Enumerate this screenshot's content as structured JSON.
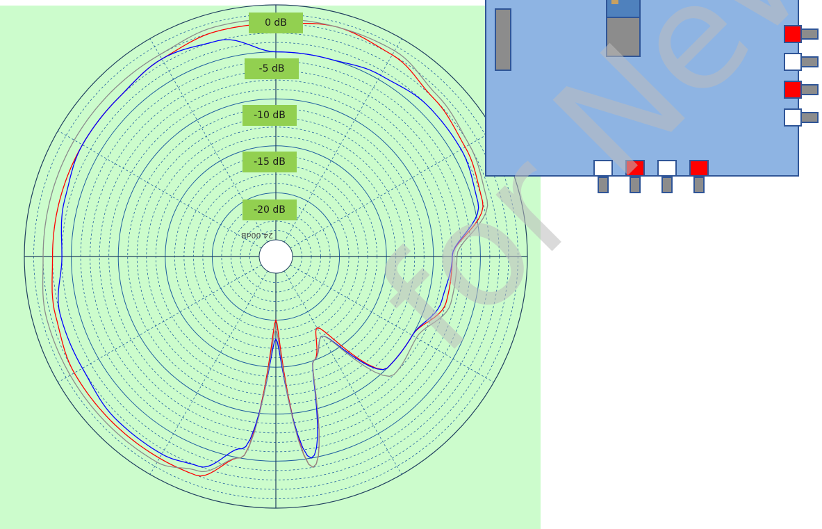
{
  "chart_data": {
    "type": "polar-line",
    "radial_labels": [
      "0 dB",
      "-5 dB",
      "-10 dB",
      "-15 dB",
      "-20 dB"
    ],
    "radial_values": [
      0,
      -5,
      -10,
      -15,
      -20
    ],
    "inner_label": "24.00dB",
    "r_range": [
      -25,
      0
    ],
    "angle_grid_step_deg": 30,
    "grid": true,
    "series": [
      {
        "color": "#ff0000",
        "angles": [
          0,
          15,
          30,
          45,
          60,
          75,
          90,
          105,
          120,
          135,
          150,
          160,
          170,
          180,
          190,
          200,
          210,
          225,
          240,
          255,
          270,
          285,
          300,
          315,
          330,
          345
        ],
        "values": [
          -2,
          -1.5,
          -2,
          -3,
          -3.5,
          -4,
          -8,
          -8,
          -10,
          -10,
          -18,
          -15,
          -4,
          -20,
          -5,
          -2,
          -2,
          -2,
          -2,
          -2.5,
          -3,
          -3,
          -3,
          -3,
          -2.5,
          -2
        ]
      },
      {
        "color": "#0000ff",
        "angles": [
          0,
          15,
          30,
          45,
          60,
          75,
          90,
          105,
          120,
          135,
          150,
          160,
          170,
          180,
          190,
          200,
          210,
          225,
          240,
          255,
          270,
          285,
          300,
          315,
          330,
          345
        ],
        "values": [
          -5,
          -5,
          -4.5,
          -4,
          -4,
          -4.5,
          -8,
          -8.5,
          -10,
          -10,
          -17,
          -15,
          -5,
          -18,
          -6,
          -3,
          -2.5,
          -2.5,
          -3,
          -3,
          -4,
          -3.5,
          -3,
          -3,
          -2.5,
          -3
        ]
      },
      {
        "color": "#8c8c8c",
        "angles": [
          0,
          15,
          30,
          45,
          60,
          75,
          90,
          105,
          120,
          135,
          150,
          160,
          170,
          180,
          190,
          200,
          210,
          225,
          240,
          255,
          270,
          285,
          300,
          315,
          330,
          345
        ],
        "values": [
          -1.5,
          -1.5,
          -1.5,
          -2.5,
          -3,
          -3.5,
          -7.5,
          -7.5,
          -9.5,
          -9,
          -17,
          -15,
          -4,
          -19,
          -5,
          -2.5,
          -1.5,
          -1.5,
          -1.5,
          -1.5,
          -2,
          -2,
          -2,
          -2,
          -2,
          -1.5
        ]
      }
    ]
  },
  "board": {
    "right_connectors": [
      "red",
      "white",
      "red",
      "white"
    ],
    "bottom_connectors": [
      "white",
      "red",
      "white",
      "red"
    ]
  },
  "colors": {
    "background": "#ccfccc",
    "label_bg": "#92d050",
    "board": "#8eb4e3",
    "board_border": "#2f5597"
  },
  "watermark_text": "for New Design"
}
